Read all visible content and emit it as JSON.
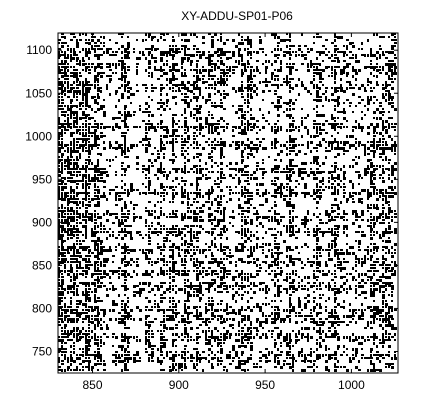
{
  "chart_data": {
    "type": "heatmap",
    "title": "XY-ADDU-SP01-P06",
    "xlabel": "",
    "ylabel": "",
    "xlim": [
      830,
      1027
    ],
    "ylim": [
      725,
      1120
    ],
    "xticks": [
      850,
      900,
      950,
      1000
    ],
    "yticks": [
      750,
      800,
      850,
      900,
      950,
      1000,
      1050,
      1100
    ],
    "xtick_labels": [
      "850",
      "900",
      "950",
      "1000"
    ],
    "ytick_labels": [
      "750",
      "800",
      "850",
      "900",
      "950",
      "1000",
      "1050",
      "1100"
    ],
    "colormap": [
      "#ffffff",
      "#000000"
    ],
    "grid": false,
    "pattern_note_dense_columns": [
      830,
      832,
      836,
      840,
      846,
      852,
      868,
      882,
      890,
      896,
      903,
      910,
      918,
      924,
      936,
      940,
      956,
      964,
      980,
      990,
      1012,
      1018,
      1022
    ],
    "pattern_dense_rows": [
      745,
      768,
      790,
      800,
      826,
      842,
      855,
      870,
      890,
      908,
      935,
      962,
      990,
      1012,
      1058,
      1080,
      1098
    ]
  }
}
